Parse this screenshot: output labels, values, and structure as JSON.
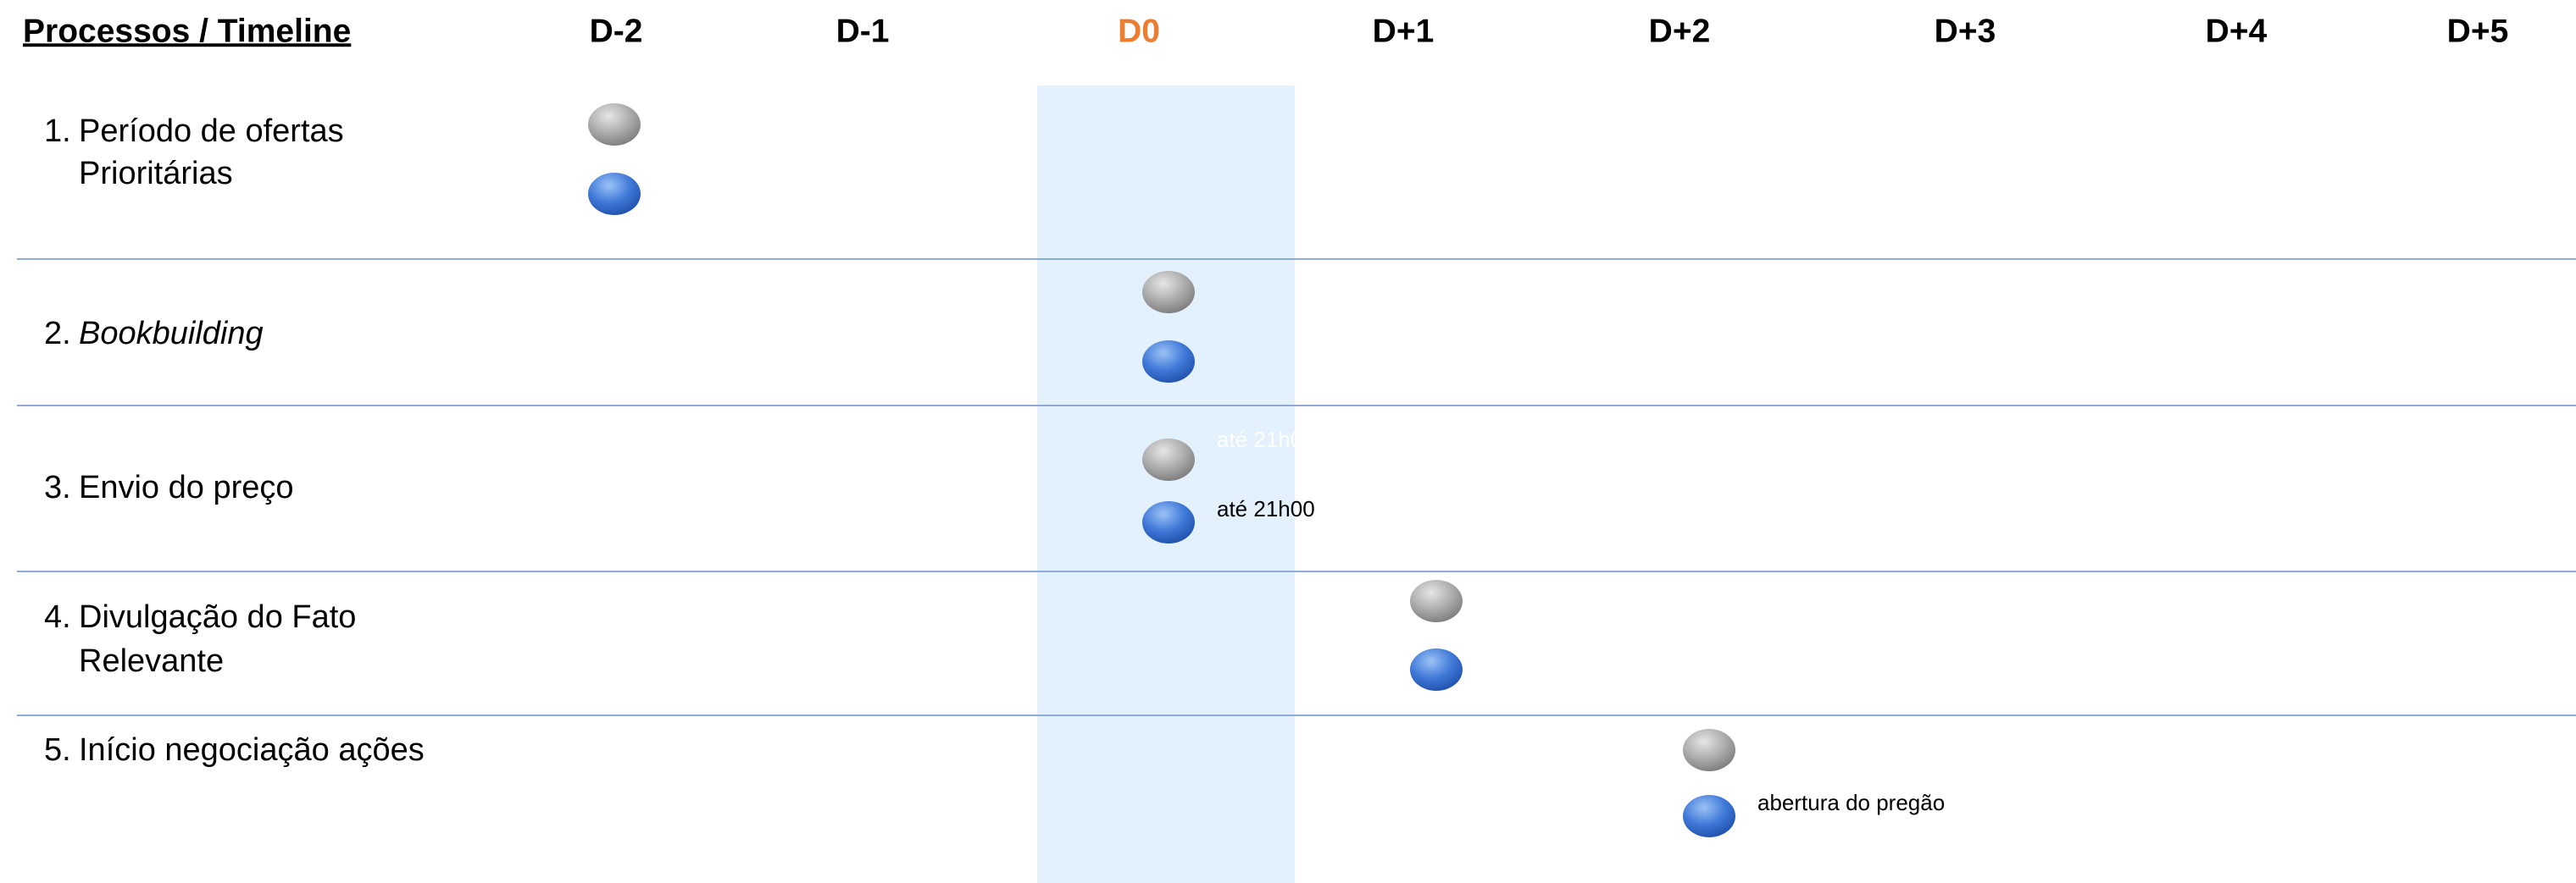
{
  "header": {
    "title": "Processos / Timeline",
    "columns": [
      "D-2",
      "D-1",
      "D0",
      "D+1",
      "D+2",
      "D+3",
      "D+4",
      "D+5"
    ],
    "highlight_column": 2
  },
  "rows": [
    {
      "number": "1.",
      "lines": [
        "Período de ofertas",
        "Prioritárias"
      ],
      "italic": false,
      "column": 0
    },
    {
      "number": "2.",
      "lines": [
        "Bookbuilding"
      ],
      "italic": true,
      "column": 2
    },
    {
      "number": "3.",
      "lines": [
        "Envio do preço"
      ],
      "italic": false,
      "column": 2,
      "gray_note": "até 21h00",
      "blue_note": "até 21h00"
    },
    {
      "number": "4.",
      "lines": [
        "Divulgação do Fato",
        "Relevante"
      ],
      "italic": false,
      "column": 3
    },
    {
      "number": "5.",
      "lines": [
        "Início negociação ações"
      ],
      "italic": false,
      "column": 4,
      "blue_note": "abertura do pregão"
    }
  ]
}
